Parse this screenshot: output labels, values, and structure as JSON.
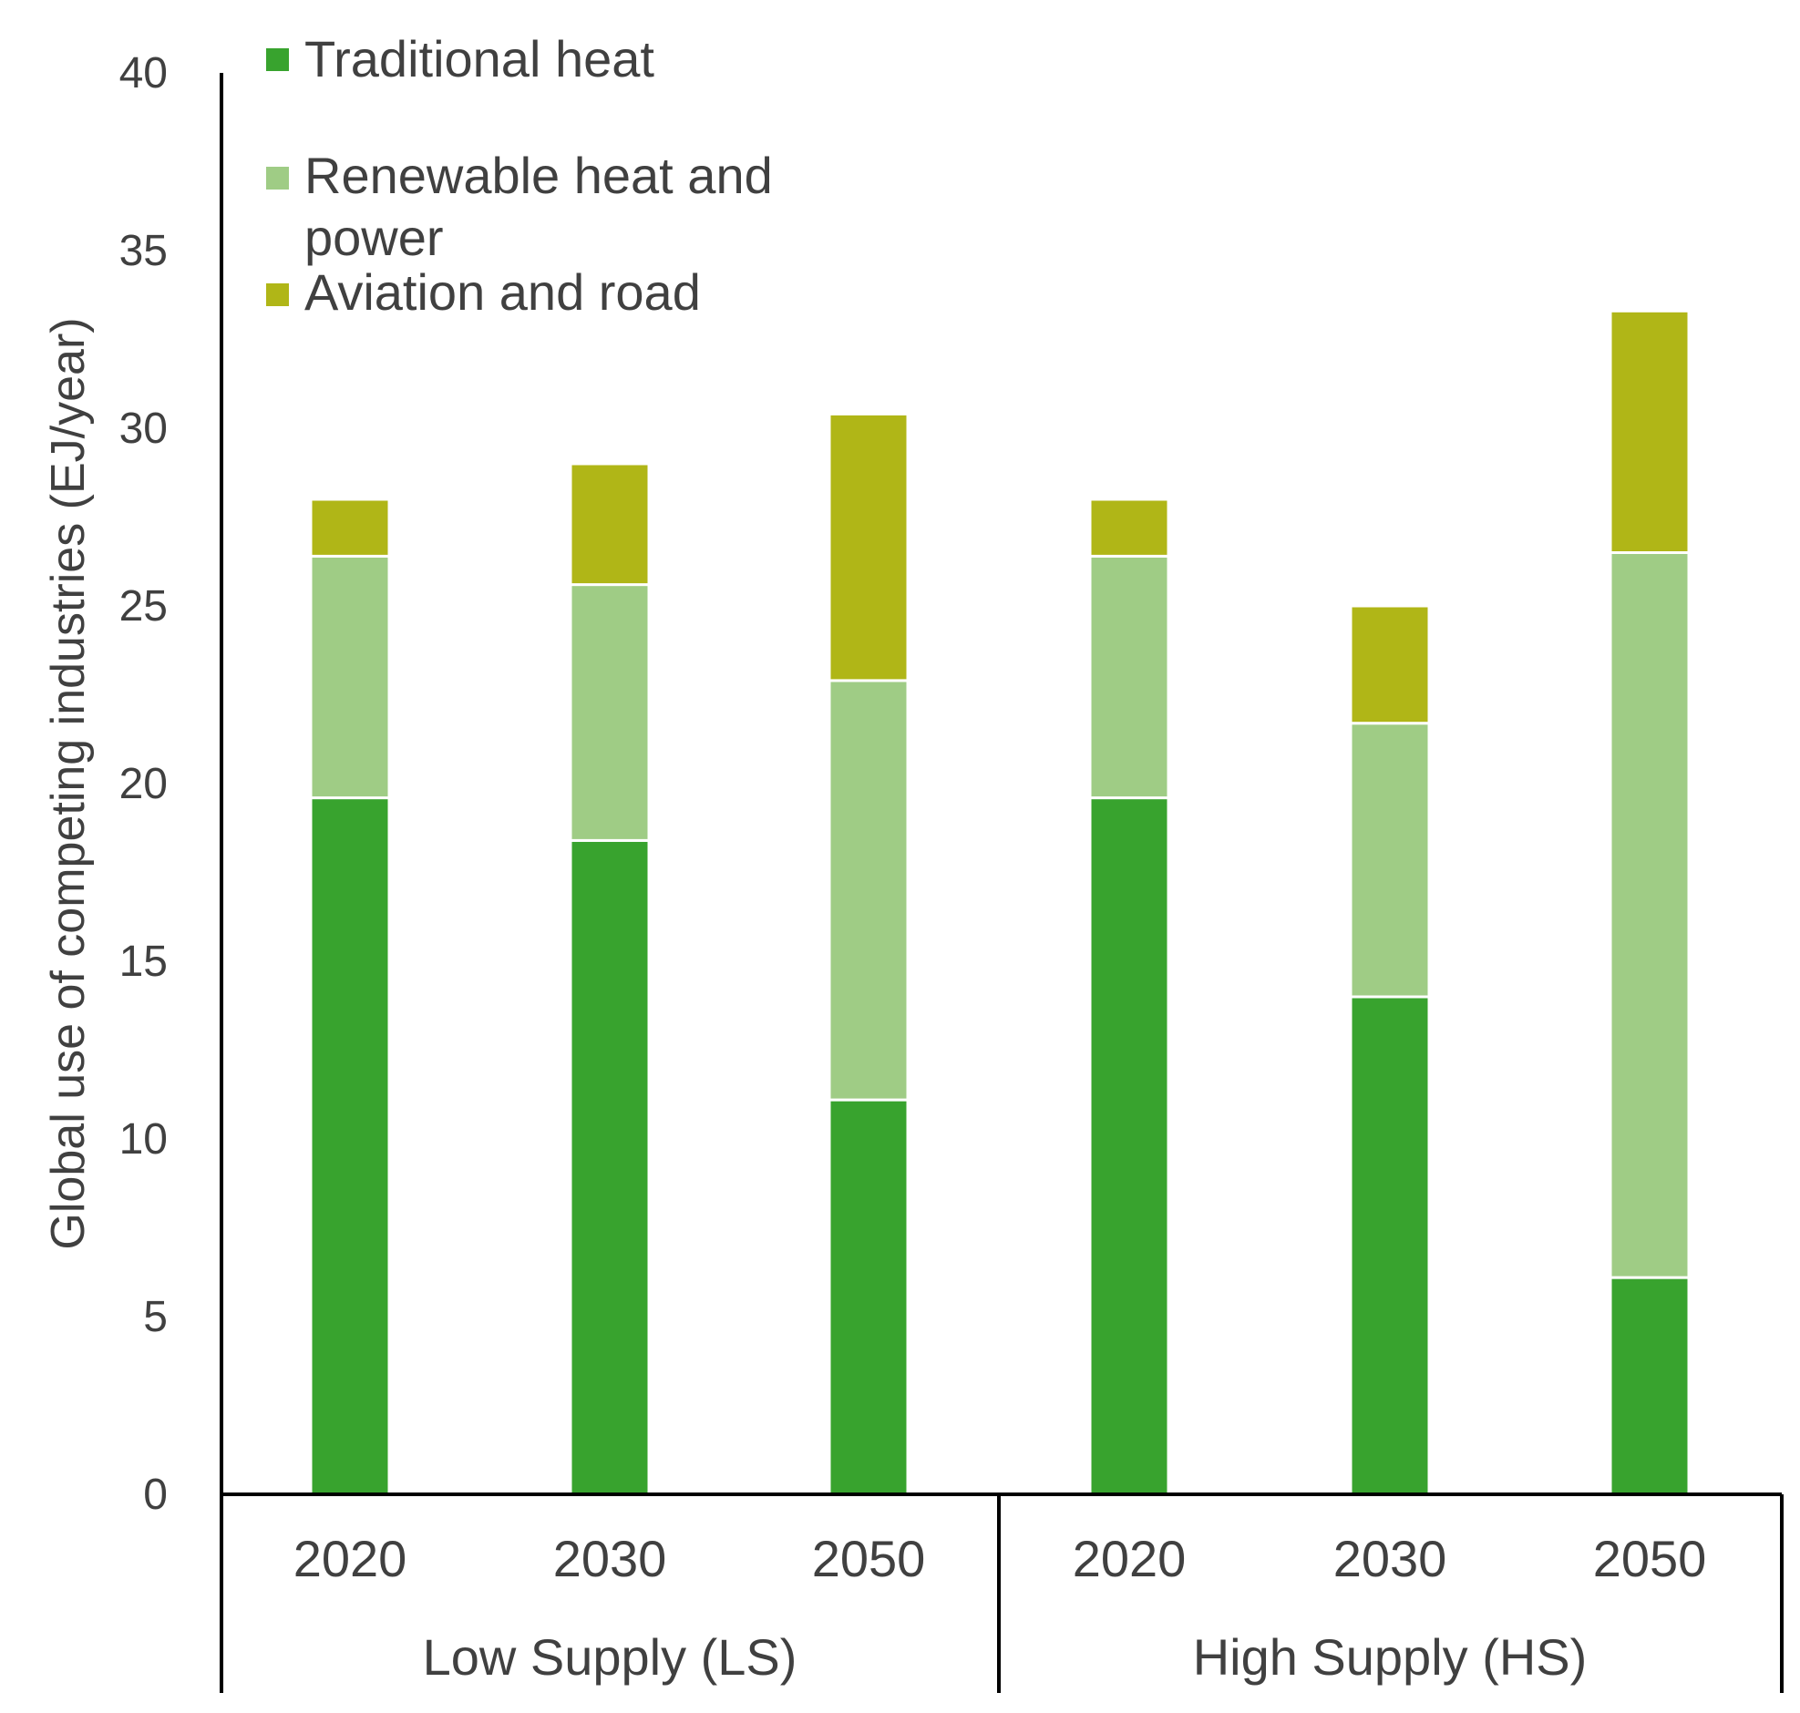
{
  "chart_data": {
    "type": "bar",
    "stacked": true,
    "title": "",
    "xlabel": "",
    "ylabel": "Global use of competing industries (EJ/year)",
    "ylim": [
      0,
      40
    ],
    "yticks": [
      0,
      5,
      10,
      15,
      20,
      25,
      30,
      35,
      40
    ],
    "grid": false,
    "legend_position": "top-left",
    "categories": [
      "2020",
      "2030",
      "2050",
      "2020",
      "2030",
      "2050"
    ],
    "groups": [
      {
        "label": "Low Supply (LS)",
        "categories": [
          "2020",
          "2030",
          "2050"
        ]
      },
      {
        "label": "High Supply (HS)",
        "categories": [
          "2020",
          "2030",
          "2050"
        ]
      }
    ],
    "series": [
      {
        "name": "Traditional heat",
        "color": "#38a32e",
        "values": [
          19.6,
          18.4,
          11.1,
          19.6,
          14.0,
          6.1
        ]
      },
      {
        "name": "Renewable heat and power",
        "color": "#9fcc85",
        "values": [
          6.8,
          7.2,
          11.8,
          6.8,
          7.7,
          20.4
        ]
      },
      {
        "name": "Aviation and road",
        "color": "#b0b617",
        "values": [
          1.6,
          3.4,
          7.5,
          1.6,
          3.3,
          6.8
        ]
      }
    ]
  }
}
